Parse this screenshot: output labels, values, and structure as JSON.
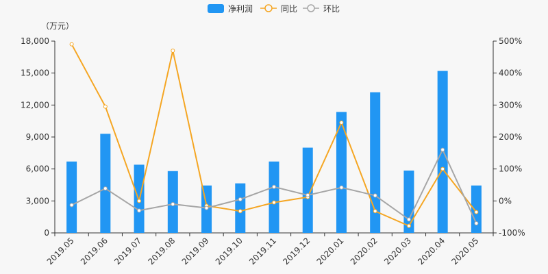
{
  "chart_data": {
    "type": "bar",
    "unit_label": "（万元）",
    "categories": [
      "2019.05",
      "2019.06",
      "2019.07",
      "2019.08",
      "2019.09",
      "2019.10",
      "2019.11",
      "2019.12",
      "2020.01",
      "2020.02",
      "2020.03",
      "2020.04",
      "2020.05"
    ],
    "series": [
      {
        "name": "净利润",
        "type": "bar",
        "axis": "left",
        "color": "#2196f3",
        "values": [
          6700,
          9300,
          6400,
          5800,
          4450,
          4650,
          6700,
          8000,
          11350,
          13200,
          5850,
          15200,
          4450
        ]
      },
      {
        "name": "同比",
        "type": "line",
        "axis": "right",
        "color": "#f5a623",
        "values": [
          490,
          295,
          0,
          470,
          -15,
          -32,
          -5,
          12,
          245,
          -32,
          -78,
          100,
          -35
        ]
      },
      {
        "name": "环比",
        "type": "line",
        "axis": "right",
        "color": "#a6a6a6",
        "values": [
          -13,
          39,
          -30,
          -10,
          -22,
          5,
          44,
          18,
          42,
          17,
          -58,
          160,
          -70
        ]
      }
    ],
    "left_axis": {
      "min": 0,
      "max": 18000,
      "ticks": [
        "0",
        "3,000",
        "6,000",
        "9,000",
        "12,000",
        "15,000",
        "18,000"
      ]
    },
    "right_axis": {
      "min": -100,
      "max": 500,
      "ticks": [
        "-100%",
        "0%",
        "100%",
        "200%",
        "300%",
        "400%",
        "500%"
      ]
    },
    "legend_position": "top-center",
    "grid": false
  }
}
